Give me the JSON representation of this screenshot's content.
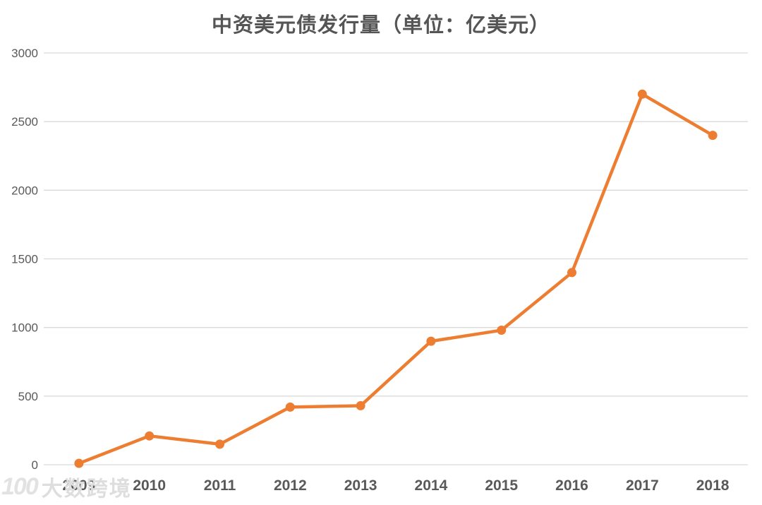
{
  "title": "中资美元债发行量（单位：亿美元）",
  "watermark": {
    "logo": "100",
    "text": "大数跨境"
  },
  "colors": {
    "line": "#ED7D31",
    "marker": "#ED7D31",
    "grid": "#D9D9D9",
    "axis_text": "#595959",
    "title_text": "#555555",
    "watermark_text": "#DEDEDE"
  },
  "chart_data": {
    "type": "line",
    "title": "中资美元债发行量（单位：亿美元）",
    "categories": [
      "2009",
      "2010",
      "2011",
      "2012",
      "2013",
      "2014",
      "2015",
      "2016",
      "2017",
      "2018"
    ],
    "series": [
      {
        "name": "中资美元债发行量",
        "values": [
          10,
          210,
          150,
          420,
          430,
          900,
          980,
          1400,
          2700,
          2400
        ]
      }
    ],
    "xlabel": "",
    "ylabel": "",
    "ylim": [
      0,
      3000
    ],
    "ytick_interval": 500,
    "ytick_labels": [
      "0",
      "500",
      "1000",
      "1500",
      "2000",
      "2500",
      "3000"
    ],
    "grid": true,
    "legend": "none",
    "marker": "circle"
  }
}
